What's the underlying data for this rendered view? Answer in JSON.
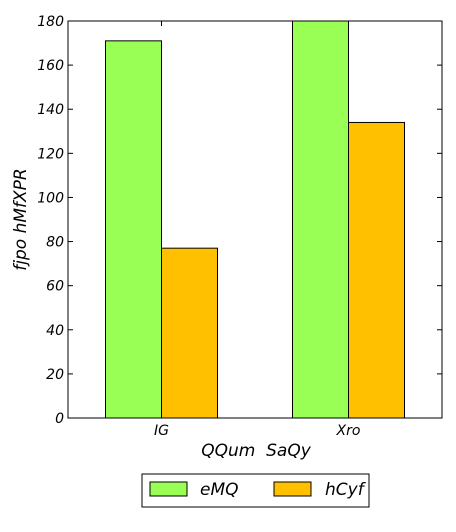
{
  "chart_data": {
    "type": "bar",
    "categories": [
      "IG",
      "Xro"
    ],
    "series": [
      {
        "name": "eMQ",
        "values": [
          171,
          180
        ],
        "color": "#99ff55"
      },
      {
        "name": "hCyf",
        "values": [
          77,
          134
        ],
        "color": "#ffc000"
      }
    ],
    "xlabel": "QQum  SaQy",
    "ylabel": "fjpo hMfXPR",
    "ylim": [
      0,
      180
    ],
    "yticks": [
      0,
      20,
      40,
      60,
      80,
      100,
      120,
      140,
      160,
      180
    ],
    "grid": false,
    "legend_position": "bottom-center"
  }
}
